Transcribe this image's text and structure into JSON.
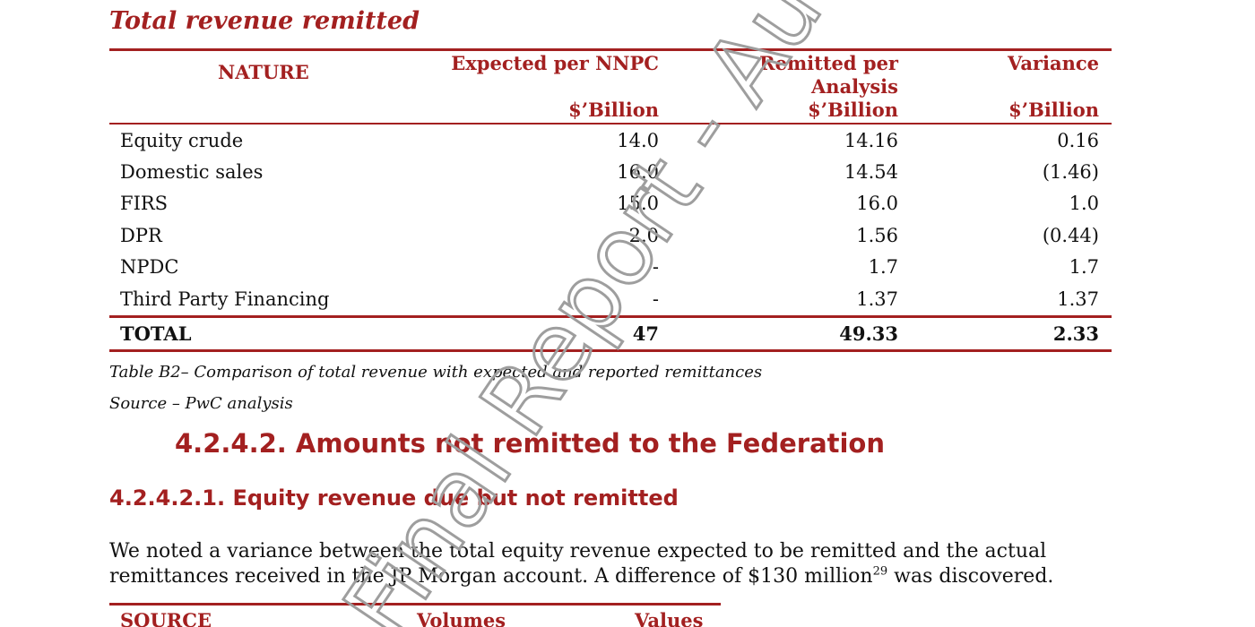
{
  "section_title": "Total revenue remitted",
  "table": {
    "headers": {
      "nature": "NATURE",
      "expected": "Expected per NNPC",
      "expected_unit": "$’Billion",
      "remitted_line1": "Remitted per",
      "remitted_line2": "Analysis",
      "remitted_unit": "$’Billion",
      "variance": "Variance",
      "variance_unit": "$’Billion"
    },
    "rows": [
      {
        "nature": "Equity crude",
        "expected": "14.0",
        "remitted": "14.16",
        "variance": "0.16"
      },
      {
        "nature": "Domestic sales",
        "expected": "16.0",
        "remitted": "14.54",
        "variance": "(1.46)"
      },
      {
        "nature": "FIRS",
        "expected": "15.0",
        "remitted": "16.0",
        "variance": "1.0"
      },
      {
        "nature": "DPR",
        "expected": "2.0",
        "remitted": "1.56",
        "variance": "(0.44)"
      },
      {
        "nature": "NPDC",
        "expected": "-",
        "remitted": "1.7",
        "variance": "1.7"
      },
      {
        "nature": "Third Party Financing",
        "expected": "-",
        "remitted": "1.37",
        "variance": "1.37"
      }
    ],
    "total": {
      "nature": "TOTAL",
      "expected": "47",
      "remitted": "49.33",
      "variance": "2.33"
    }
  },
  "caption": "Table B2– Comparison of total revenue with expected and reported remittances",
  "source": "Source – PwC analysis",
  "heading_4242": "4.2.4.2. Amounts not remitted to the Federation",
  "heading_42421": "4.2.4.2.1. Equity revenue due but not remitted",
  "paragraph": {
    "line1": "We noted a variance between the total equity revenue expected to be remitted and the actual",
    "line2_before": "remittances received in the JP Morgan account.  A difference of $130 million",
    "footnote": "29",
    "line2_after": " was discovered."
  },
  "table2_headers": {
    "source": "SOURCE",
    "volumes": "Volumes",
    "values": "Values"
  },
  "watermark": {
    "text": "Final Report - AuGF's Copy",
    "color": "#9e9e9e"
  },
  "colors": {
    "accent": "#a32020",
    "text": "#111111"
  }
}
